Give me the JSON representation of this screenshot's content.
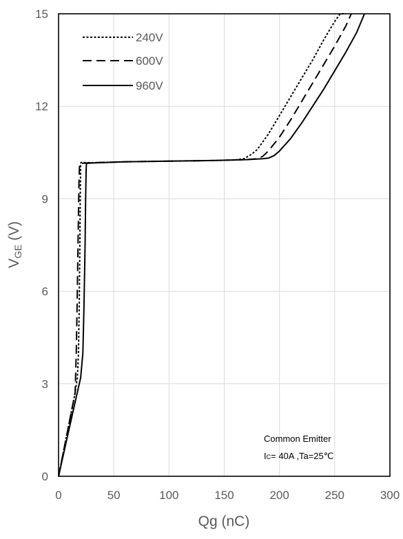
{
  "chart_data": {
    "type": "line",
    "xlabel": "Qg (nC)",
    "ylabel": {
      "main": "V",
      "sub": "GE",
      "unit": " (V)"
    },
    "xlim": [
      0,
      300
    ],
    "ylim": [
      0,
      15
    ],
    "xticks": [
      0,
      50,
      100,
      150,
      200,
      250,
      300
    ],
    "yticks": [
      0,
      3,
      6,
      9,
      12,
      15
    ],
    "grid": true,
    "legend_position": "top-left",
    "series": [
      {
        "name": "240V",
        "dash": "dotted",
        "x": [
          0,
          5,
          10,
          15,
          17,
          18,
          18.7,
          19.3,
          19.7,
          20,
          20.5,
          30,
          60,
          100,
          140,
          160,
          168,
          175,
          180,
          190,
          200,
          210,
          220,
          230,
          240,
          250,
          255,
          260
        ],
        "y": [
          0,
          0.9,
          1.8,
          2.7,
          3.2,
          4.0,
          5.5,
          7.5,
          9.2,
          10.15,
          10.18,
          10.17,
          10.2,
          10.22,
          10.24,
          10.26,
          10.3,
          10.45,
          10.6,
          11.1,
          11.7,
          12.3,
          12.9,
          13.5,
          14.15,
          14.75,
          15.0,
          15.0
        ]
      },
      {
        "name": "600V",
        "dash": "dashed",
        "x": [
          0,
          5,
          10,
          15,
          16,
          16.8,
          17.4,
          18,
          18.5,
          19,
          30,
          60,
          100,
          140,
          170,
          180,
          185,
          190,
          200,
          210,
          220,
          230,
          240,
          250,
          260,
          265
        ],
        "y": [
          0,
          0.9,
          1.8,
          2.7,
          4.0,
          5.5,
          7.0,
          8.5,
          9.6,
          10.15,
          10.17,
          10.2,
          10.22,
          10.24,
          10.27,
          10.3,
          10.38,
          10.55,
          11.0,
          11.55,
          12.15,
          12.75,
          13.35,
          13.95,
          14.6,
          15.0
        ]
      },
      {
        "name": "960V",
        "dash": "solid",
        "x": [
          0,
          5,
          10,
          15,
          20,
          22,
          23,
          24,
          24.5,
          25,
          25.3,
          30,
          60,
          100,
          140,
          170,
          185,
          190,
          195,
          200,
          210,
          220,
          230,
          240,
          250,
          260,
          270,
          277
        ],
        "y": [
          0,
          0.8,
          1.6,
          2.4,
          3.2,
          4.0,
          5.5,
          7.5,
          9.0,
          10.0,
          10.15,
          10.16,
          10.2,
          10.22,
          10.24,
          10.27,
          10.3,
          10.32,
          10.4,
          10.55,
          10.95,
          11.45,
          12.0,
          12.55,
          13.15,
          13.75,
          14.4,
          15.0
        ]
      }
    ],
    "annotation": {
      "line1": "Common Emitter",
      "line2_symbol": "I",
      "line2_sub": "C",
      "line2_rest": "= 40A ,Ta=25℃"
    }
  }
}
